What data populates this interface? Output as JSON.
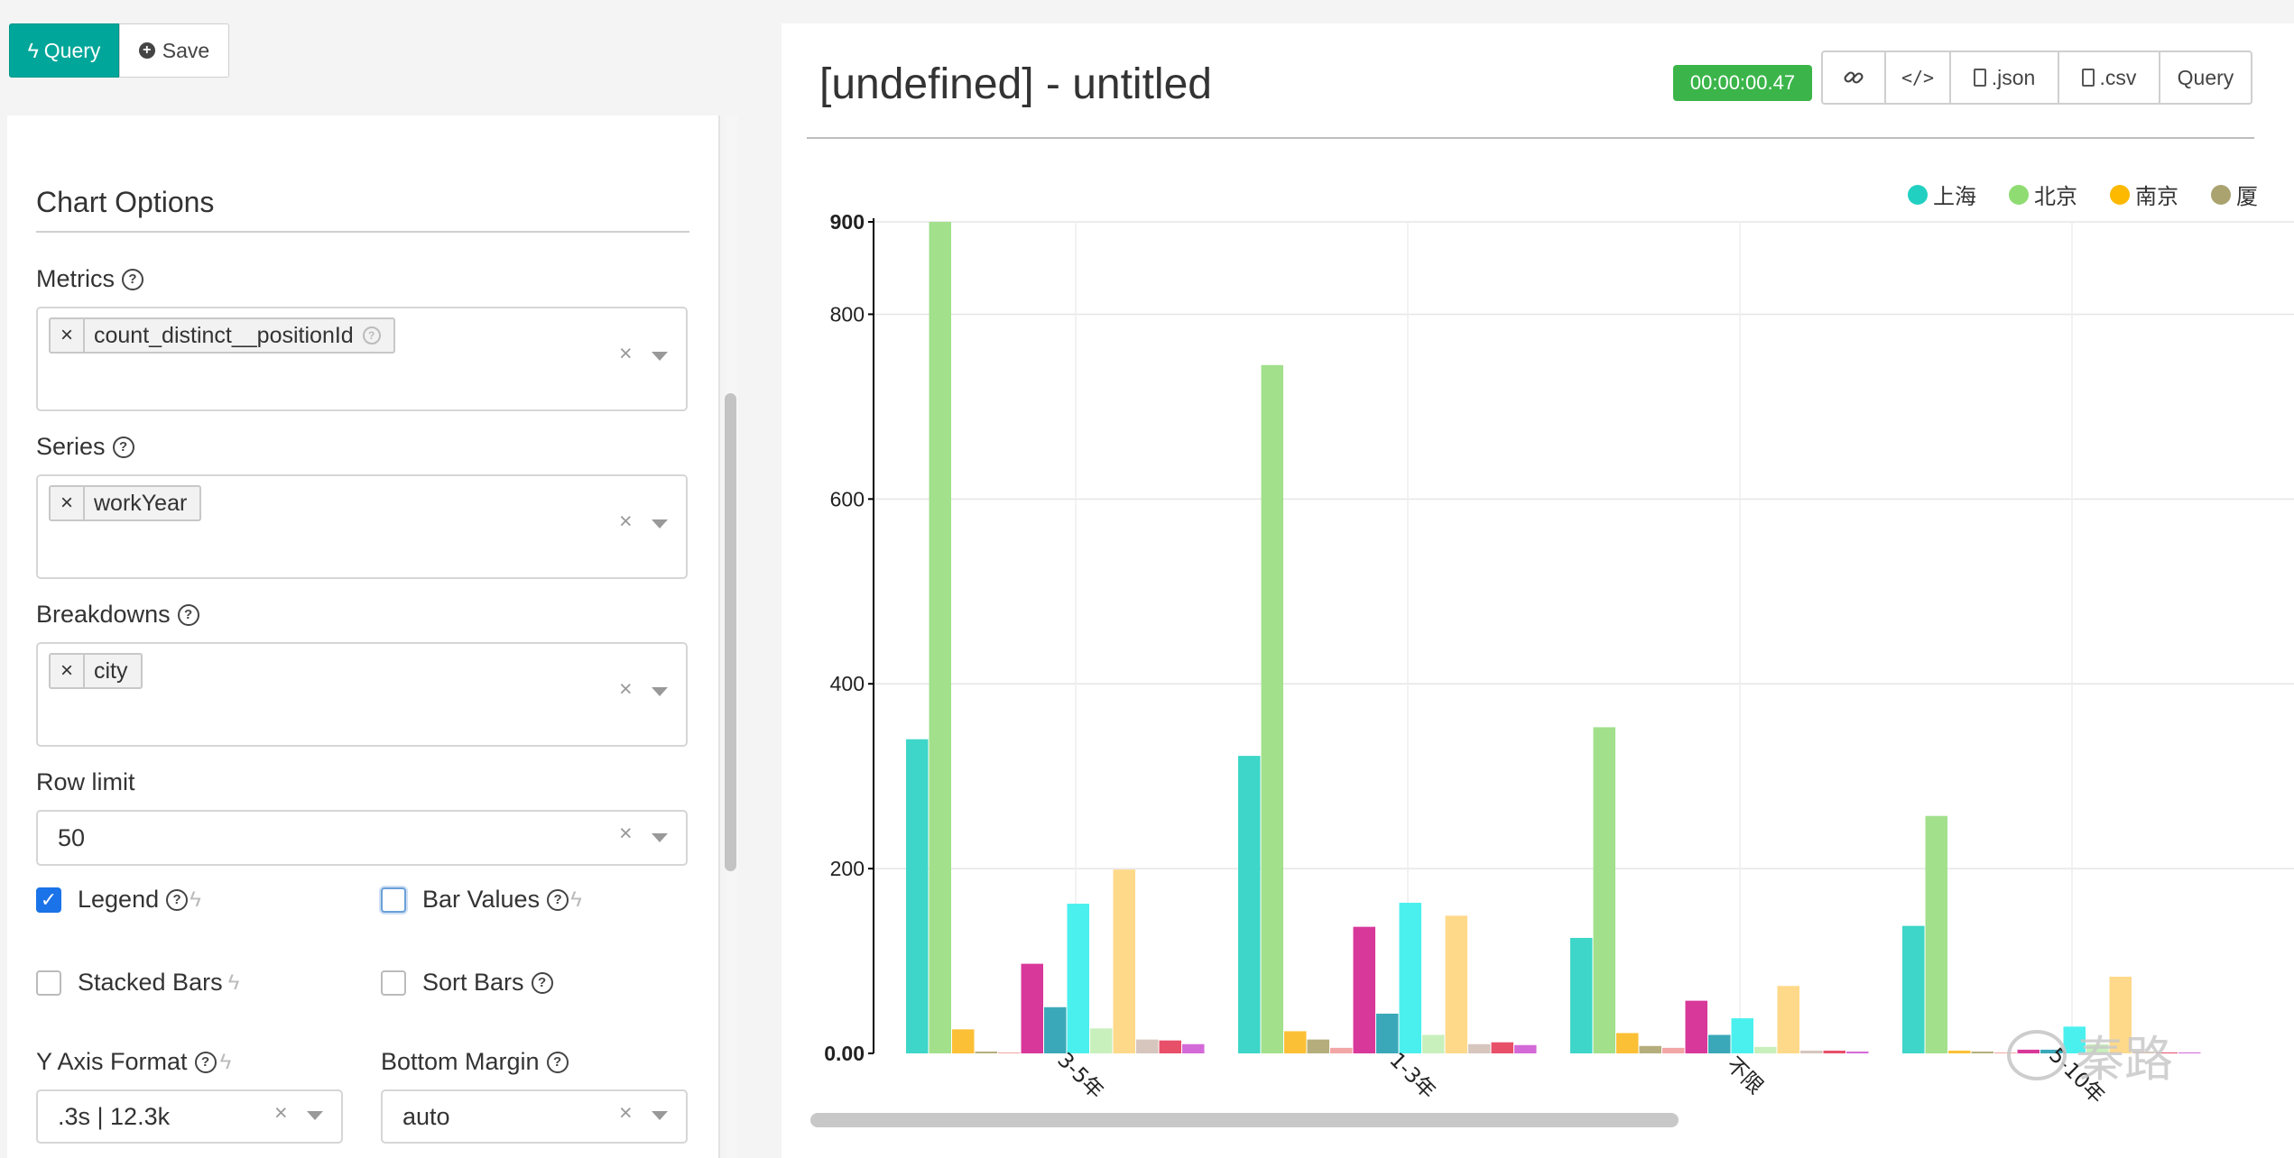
{
  "toolbar_left": {
    "query_label": "Query",
    "save_label": "Save"
  },
  "chart_options": {
    "title": "Chart Options",
    "metrics": {
      "label": "Metrics",
      "chips": [
        "count_distinct__positionId"
      ]
    },
    "series": {
      "label": "Series",
      "chips": [
        "workYear"
      ]
    },
    "breakdowns": {
      "label": "Breakdowns",
      "chips": [
        "city"
      ]
    },
    "row_limit": {
      "label": "Row limit",
      "value": "50"
    },
    "legend": {
      "label": "Legend",
      "checked": true
    },
    "bar_values": {
      "label": "Bar Values",
      "checked": false
    },
    "stacked_bars": {
      "label": "Stacked Bars",
      "checked": false
    },
    "sort_bars": {
      "label": "Sort Bars",
      "checked": false
    },
    "y_axis_format": {
      "label": "Y Axis Format",
      "value": ".3s | 12.3k"
    },
    "bottom_margin": {
      "label": "Bottom Margin",
      "value": "auto"
    }
  },
  "header": {
    "title": "[undefined] - untitled",
    "timer": "00:00:00.47",
    "buttons": {
      "link_icon": "link-icon",
      "embed_icon": "code-icon",
      "json": ".json",
      "csv": ".csv",
      "query": "Query"
    }
  },
  "colors": {
    "accent": "#00a699",
    "timer": "#3bb54a",
    "checkbox": "#1a73e8"
  },
  "chart_data": {
    "type": "bar",
    "categories": [
      "3-5年",
      "1-3年",
      "不限",
      "5-10年"
    ],
    "ylim": [
      0,
      900
    ],
    "yticks": [
      "0.00",
      "200",
      "400",
      "600",
      "800",
      "900"
    ],
    "grid": true,
    "legend_position": "top-right",
    "series": [
      {
        "name": "上海",
        "color": "#3dd6c8",
        "values": [
          340,
          322,
          125,
          138
        ]
      },
      {
        "name": "北京",
        "color": "#a2e08c",
        "values": [
          900,
          745,
          353,
          257
        ]
      },
      {
        "name": "南京",
        "color": "#fcc037",
        "values": [
          26,
          24,
          22,
          3
        ]
      },
      {
        "name": "厦",
        "color": "#b5ae7c",
        "values": [
          2,
          15,
          8,
          2
        ]
      },
      {
        "color": "#f2a6a6",
        "values": [
          1,
          6,
          6,
          1
        ]
      },
      {
        "color": "#d8389a",
        "values": [
          97,
          137,
          57,
          4
        ]
      },
      {
        "color": "#3aa8b8",
        "values": [
          50,
          43,
          20,
          4
        ]
      },
      {
        "color": "#4af0ee",
        "values": [
          162,
          163,
          38,
          29
        ]
      },
      {
        "color": "#c8f0bc",
        "values": [
          27,
          20,
          7,
          10
        ]
      },
      {
        "color": "#ffd98a",
        "values": [
          199,
          149,
          73,
          83
        ]
      },
      {
        "color": "#d6c6be",
        "values": [
          15,
          10,
          3,
          2
        ]
      },
      {
        "color": "#e8506a",
        "values": [
          14,
          12,
          3,
          1
        ]
      },
      {
        "color": "#d46ad8",
        "values": [
          10,
          9,
          2,
          1
        ]
      },
      {
        "color": "#3dd6c8",
        "values": [
          null,
          null,
          null,
          33
        ]
      }
    ]
  },
  "watermark": {
    "text": "秦路"
  }
}
